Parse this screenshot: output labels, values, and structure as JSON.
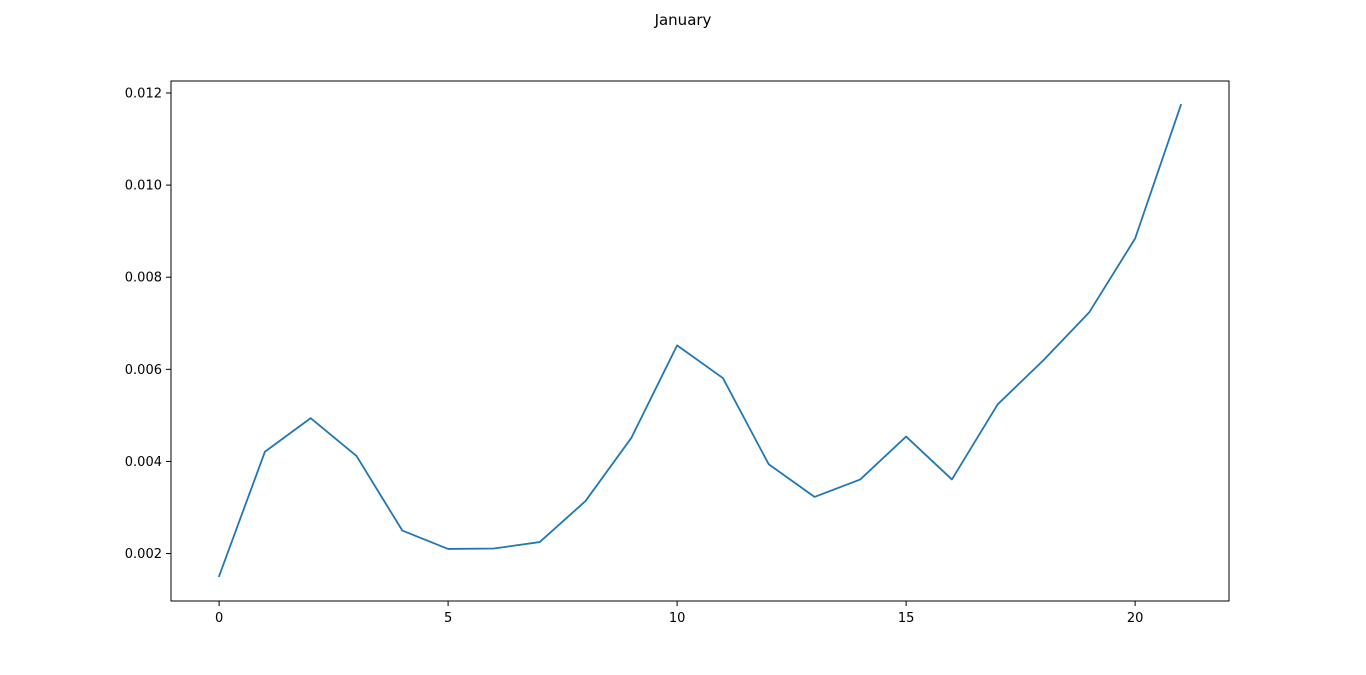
{
  "chart_data": {
    "type": "line",
    "title": "January",
    "xlabel": "",
    "ylabel": "",
    "xlim": [
      -1.05,
      22.05
    ],
    "ylim": [
      0.00097,
      0.01226
    ],
    "x_ticks": [
      0,
      5,
      10,
      15,
      20
    ],
    "x_tick_labels": [
      "0",
      "5",
      "10",
      "15",
      "20"
    ],
    "y_ticks": [
      0.002,
      0.004,
      0.006,
      0.008,
      0.01,
      0.012
    ],
    "y_tick_labels": [
      "0.002",
      "0.004",
      "0.006",
      "0.008",
      "0.010",
      "0.012"
    ],
    "grid": false,
    "legend": "none",
    "series": [
      {
        "color": "#1f77b4",
        "x": [
          0,
          1,
          2,
          3,
          4,
          5,
          6,
          7,
          8,
          9,
          10,
          11,
          12,
          13,
          14,
          15,
          16,
          17,
          18,
          19,
          20,
          21
        ],
        "values": [
          0.00151,
          0.00421,
          0.00494,
          0.00412,
          0.0025,
          0.0021,
          0.00211,
          0.00225,
          0.00314,
          0.00451,
          0.00652,
          0.00581,
          0.00394,
          0.00323,
          0.00361,
          0.00454,
          0.00361,
          0.00524,
          0.0062,
          0.00724,
          0.00884,
          0.01174
        ]
      }
    ]
  }
}
